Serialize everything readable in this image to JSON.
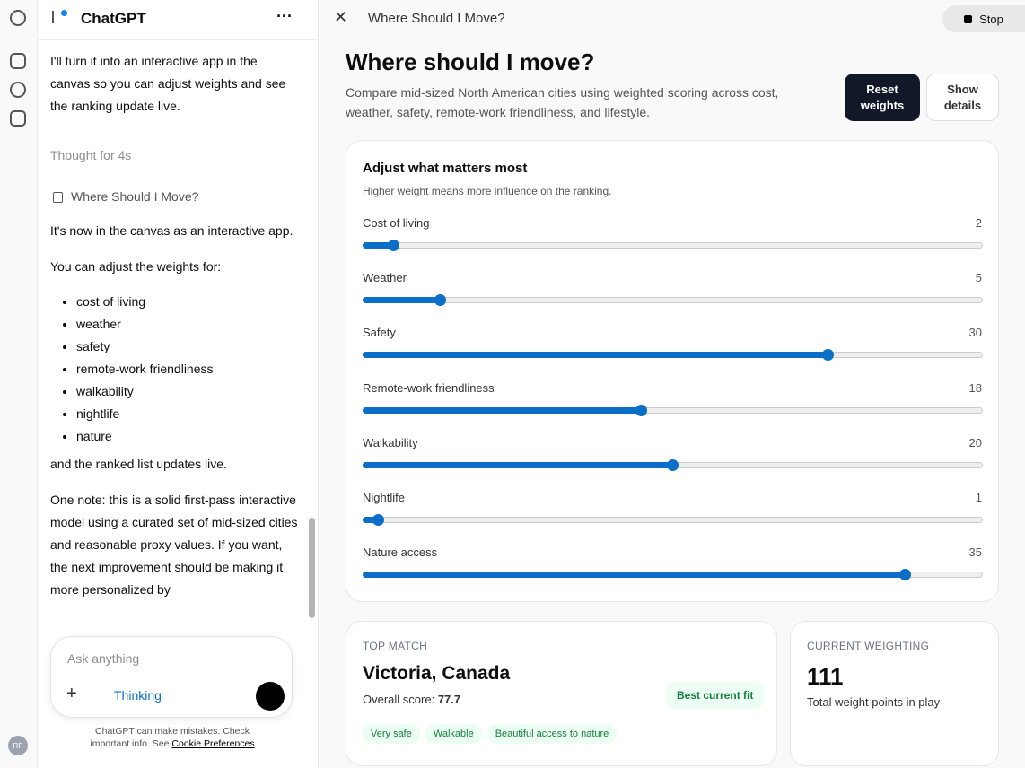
{
  "sidebar": {
    "app_name": "ChatGPT",
    "avatar": "RP"
  },
  "chat": {
    "intro": "I'll turn it into an interactive app in the canvas so you can adjust weights and see the ranking update live.",
    "thought": "Thought for 4s",
    "canvas_link": "Where Should I Move?",
    "p1": "It's now in the canvas as an interactive app.",
    "p2": "You can adjust the weights for:",
    "bullets": [
      "cost of living",
      "weather",
      "safety",
      "remote-work friendliness",
      "walkability",
      "nightlife",
      "nature"
    ],
    "p3": "and the ranked list updates live.",
    "p4": "One note: this is a solid first-pass interactive model using a curated set of mid-sized cities and reasonable proxy values. If you want, the next improvement should be making it more personalized by"
  },
  "composer": {
    "placeholder": "Ask anything",
    "mode": "Thinking",
    "disclaimer": "ChatGPT can make mistakes. Check important info. See",
    "cookie_link": "Cookie Preferences"
  },
  "canvas": {
    "title_bar": "Where Should I Move?",
    "stop": "Stop",
    "heading": "Where should I move?",
    "description": "Compare mid-sized North American cities using weighted scoring across cost, weather, safety, remote-work friendliness, and lifestyle.",
    "reset": "Reset weights",
    "details": "Show details",
    "weights": {
      "title": "Adjust what matters most",
      "subtitle": "Higher weight means more influence on the ranking.",
      "range": [
        0,
        40
      ],
      "items": [
        {
          "label": "Cost of living",
          "value": 2
        },
        {
          "label": "Weather",
          "value": 5
        },
        {
          "label": "Safety",
          "value": 30
        },
        {
          "label": "Remote-work friendliness",
          "value": 18
        },
        {
          "label": "Walkability",
          "value": 20
        },
        {
          "label": "Nightlife",
          "value": 1
        },
        {
          "label": "Nature access",
          "value": 35
        }
      ]
    },
    "top_match": {
      "kicker": "TOP MATCH",
      "city": "Victoria, Canada",
      "score_label": "Overall score:",
      "score": 77.7,
      "badge": "Best current fit",
      "tags": [
        "Very safe",
        "Walkable",
        "Beautiful access to nature"
      ]
    },
    "current_weighting": {
      "kicker": "CURRENT WEIGHTING",
      "total": 111,
      "caption": "Total weight points in play"
    }
  }
}
